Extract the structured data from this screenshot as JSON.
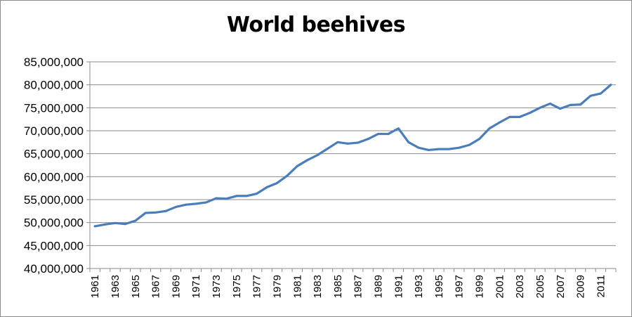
{
  "chart_data": {
    "type": "line",
    "title": "World beehives",
    "xlabel": "",
    "ylabel": "",
    "ylim": [
      40000000,
      85000000
    ],
    "yticks": [
      "40,000,000",
      "45,000,000",
      "50,000,000",
      "55,000,000",
      "60,000,000",
      "65,000,000",
      "70,000,000",
      "75,000,000",
      "80,000,000",
      "85,000,000"
    ],
    "xtick_labels": [
      "1961",
      "1963",
      "1965",
      "1967",
      "1969",
      "1971",
      "1973",
      "1975",
      "1977",
      "1979",
      "1981",
      "1983",
      "1985",
      "1987",
      "1989",
      "1991",
      "1993",
      "1995",
      "1997",
      "1999",
      "2001",
      "2003",
      "2005",
      "2007",
      "2009",
      "2011"
    ],
    "grid": true,
    "legend": "none",
    "line_color": "#4a7ebb",
    "x": [
      1961,
      1962,
      1963,
      1964,
      1965,
      1966,
      1967,
      1968,
      1969,
      1970,
      1971,
      1972,
      1973,
      1974,
      1975,
      1976,
      1977,
      1978,
      1979,
      1980,
      1981,
      1982,
      1983,
      1984,
      1985,
      1986,
      1987,
      1988,
      1989,
      1990,
      1991,
      1992,
      1993,
      1994,
      1995,
      1996,
      1997,
      1998,
      1999,
      2000,
      2001,
      2002,
      2003,
      2004,
      2005,
      2006,
      2007,
      2008,
      2009,
      2010,
      2011,
      2012
    ],
    "series": [
      {
        "values": [
          49200000,
          49600000,
          49900000,
          49700000,
          50400000,
          52100000,
          52200000,
          52500000,
          53400000,
          53900000,
          54100000,
          54400000,
          55300000,
          55200000,
          55800000,
          55800000,
          56300000,
          57700000,
          58600000,
          60200000,
          62300000,
          63600000,
          64700000,
          66100000,
          67500000,
          67200000,
          67400000,
          68200000,
          69300000,
          69300000,
          70500000,
          67500000,
          66300000,
          65800000,
          66000000,
          66000000,
          66300000,
          66900000,
          68200000,
          70500000,
          71800000,
          73000000,
          73000000,
          73900000,
          75000000,
          75900000,
          74800000,
          75600000,
          75700000,
          77600000,
          78100000,
          80000000
        ]
      }
    ]
  }
}
